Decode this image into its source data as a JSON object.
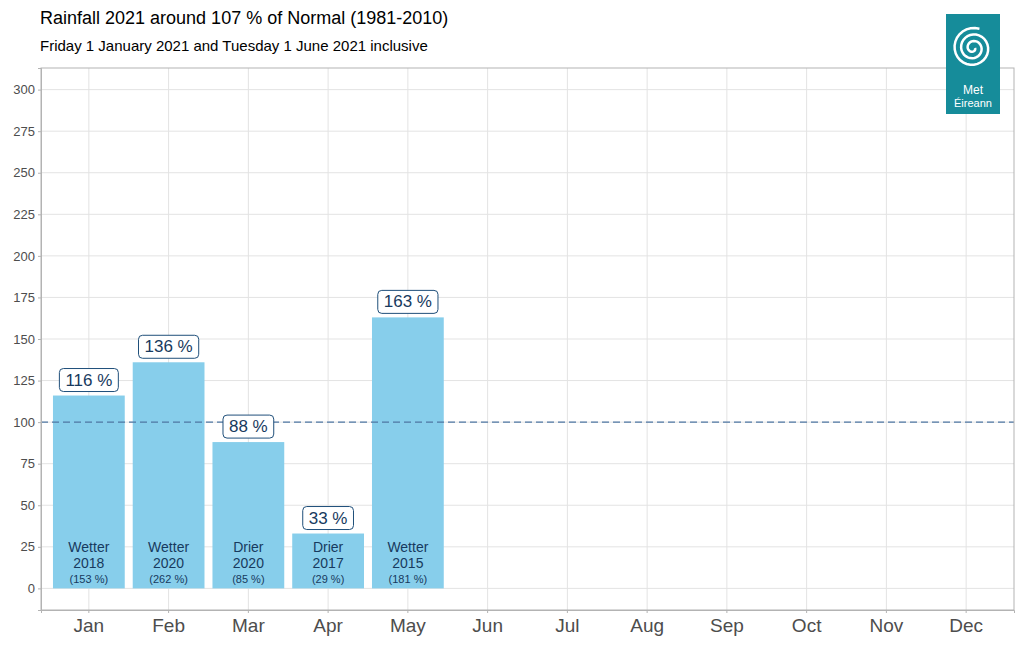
{
  "chart_data": {
    "type": "bar",
    "title": "Rainfall 2021 around 107 % of Normal (1981-2010)",
    "subtitle": "Friday 1 January 2021 and Tuesday 1 June 2021 inclusive",
    "categories": [
      "Jan",
      "Feb",
      "Mar",
      "Apr",
      "May",
      "Jun",
      "Jul",
      "Aug",
      "Sep",
      "Oct",
      "Nov",
      "Dec"
    ],
    "values": [
      116,
      136,
      88,
      33,
      163,
      null,
      null,
      null,
      null,
      null,
      null,
      null
    ],
    "value_labels": [
      "116 %",
      "136 %",
      "88 %",
      "33 %",
      "163 %",
      null,
      null,
      null,
      null,
      null,
      null,
      null
    ],
    "data_labels": true,
    "color": "#87ceeb",
    "ylim": [
      -13,
      313
    ],
    "yticks": [
      0,
      25,
      50,
      75,
      100,
      125,
      150,
      175,
      200,
      225,
      250,
      275,
      300
    ],
    "grid": true,
    "reference_line": {
      "value": 100,
      "line_style": "dashed"
    },
    "annotations": [
      {
        "text": [
          "Wetter",
          "2018"
        ],
        "value_label": "(153 %)"
      },
      {
        "text": [
          "Wetter",
          "2020"
        ],
        "value_label": "(262 %)"
      },
      {
        "text": [
          "Drier",
          "2020"
        ],
        "value_label": "(85 %)"
      },
      {
        "text": [
          "Drier",
          "2017"
        ],
        "value_label": "(29 %)"
      },
      {
        "text": [
          "Wetter",
          "2015"
        ],
        "value_label": "(181 %)"
      },
      null,
      null,
      null,
      null,
      null,
      null,
      null
    ],
    "logo": [
      "Met",
      "Éireann"
    ]
  }
}
